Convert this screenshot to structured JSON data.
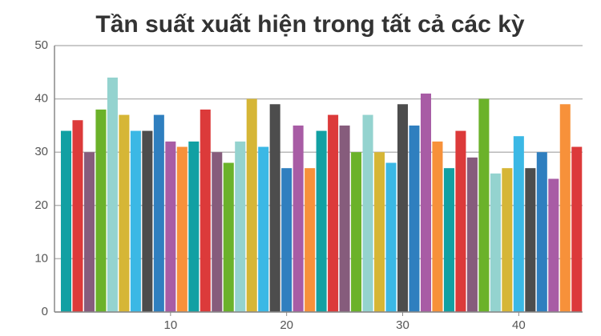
{
  "chart_data": {
    "type": "bar",
    "title": "Tần suất xuất hiện trong tất cả các kỳ",
    "x": [
      1,
      2,
      3,
      4,
      5,
      6,
      7,
      8,
      9,
      10,
      11,
      12,
      13,
      14,
      15,
      16,
      17,
      18,
      19,
      20,
      21,
      22,
      23,
      24,
      25,
      26,
      27,
      28,
      29,
      30,
      31,
      32,
      33,
      34,
      35,
      36,
      37,
      38,
      39,
      40,
      41,
      42,
      43,
      44,
      45
    ],
    "values": [
      34,
      36,
      30,
      38,
      44,
      37,
      34,
      34,
      37,
      32,
      31,
      32,
      38,
      30,
      28,
      32,
      40,
      31,
      39,
      27,
      35,
      27,
      34,
      37,
      35,
      30,
      37,
      30,
      28,
      39,
      35,
      41,
      32,
      27,
      34,
      29,
      40,
      26,
      27,
      33,
      27,
      30,
      25,
      39,
      31
    ],
    "colors": [
      "#12a0a3",
      "#dc3a3a",
      "#865c7c",
      "#6bb22a",
      "#94d3cf",
      "#d6b636",
      "#3bb8e5",
      "#4d4d4d",
      "#2f7fbf",
      "#a85ca5",
      "#f7913a",
      "#12a0a3",
      "#dc3a3a",
      "#865c7c",
      "#6bb22a",
      "#94d3cf",
      "#d6b636",
      "#3bb8e5",
      "#4d4d4d",
      "#2f7fbf",
      "#a85ca5",
      "#f7913a",
      "#12a0a3",
      "#dc3a3a",
      "#865c7c",
      "#6bb22a",
      "#94d3cf",
      "#d6b636",
      "#3bb8e5",
      "#4d4d4d",
      "#2f7fbf",
      "#a85ca5",
      "#f7913a",
      "#12a0a3",
      "#dc3a3a",
      "#865c7c",
      "#6bb22a",
      "#94d3cf",
      "#d6b636",
      "#3bb8e5",
      "#4d4d4d",
      "#2f7fbf",
      "#a85ca5",
      "#f7913a",
      "#dc3a3a"
    ],
    "xlim": [
      0,
      45.5
    ],
    "xticks": [
      10,
      20,
      30,
      40
    ],
    "ylim": [
      0,
      50
    ],
    "yticks": [
      0,
      10,
      20,
      30,
      40,
      50
    ],
    "grid": true
  }
}
